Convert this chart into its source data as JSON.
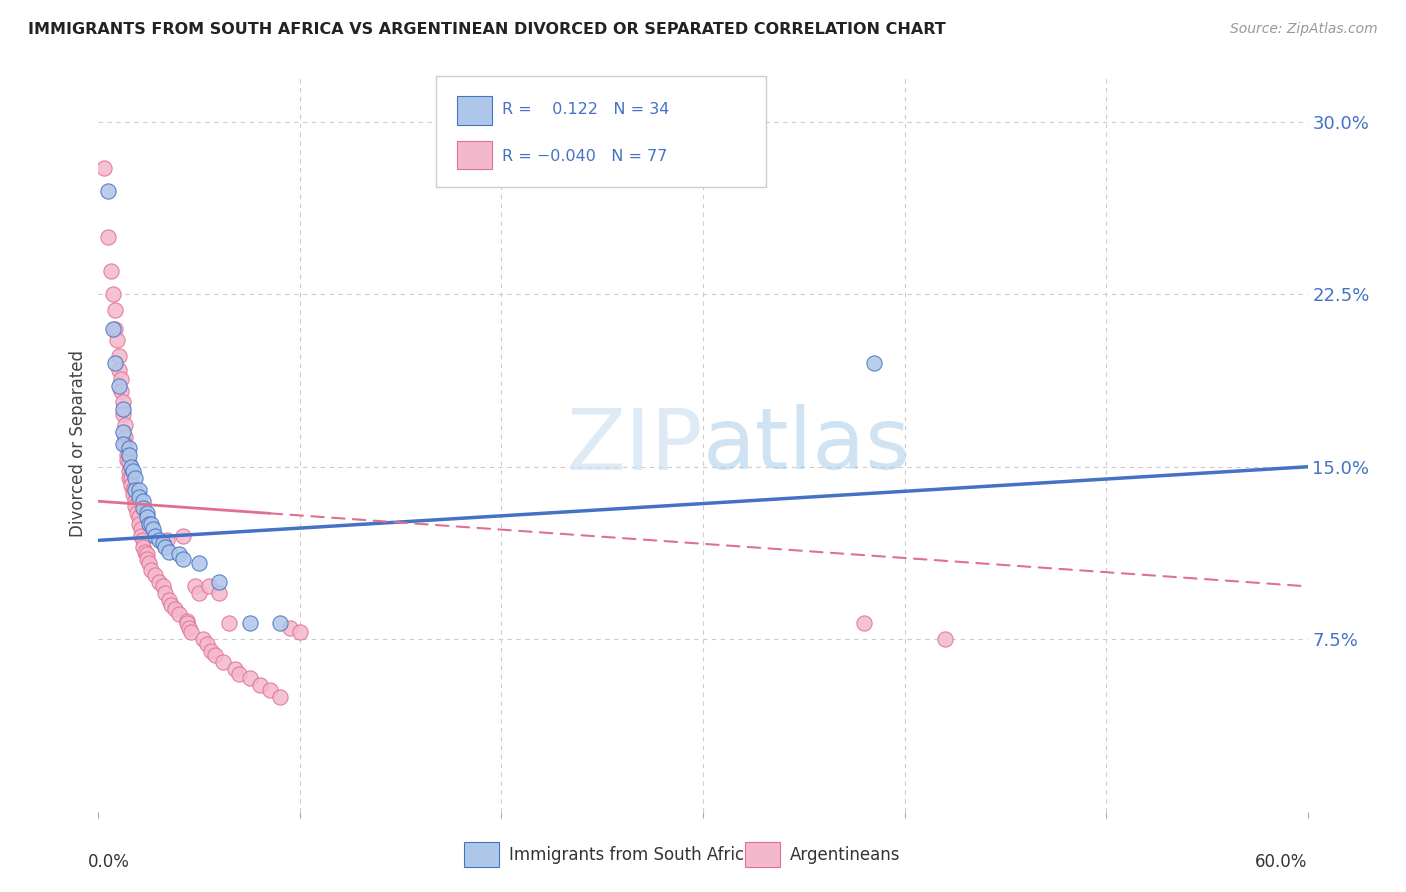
{
  "title": "IMMIGRANTS FROM SOUTH AFRICA VS ARGENTINEAN DIVORCED OR SEPARATED CORRELATION CHART",
  "source": "Source: ZipAtlas.com",
  "ylabel": "Divorced or Separated",
  "ytick_vals": [
    0.075,
    0.15,
    0.225,
    0.3
  ],
  "ytick_labels": [
    "7.5%",
    "15.0%",
    "22.5%",
    "30.0%"
  ],
  "x_min": 0.0,
  "x_max": 0.6,
  "y_min": 0.0,
  "y_max": 0.32,
  "blue_color": "#aec6e8",
  "pink_color": "#f4b8cc",
  "blue_line_color": "#4472c4",
  "pink_line_color": "#e07090",
  "blue_line_y0": 0.118,
  "blue_line_y1": 0.15,
  "pink_line_solid_x0": 0.0,
  "pink_line_solid_y0": 0.135,
  "pink_line_solid_x1": 0.085,
  "pink_line_solid_y1": 0.13,
  "pink_line_dash_x0": 0.085,
  "pink_line_dash_y0": 0.13,
  "pink_line_dash_x1": 0.6,
  "pink_line_dash_y1": 0.098,
  "blue_scatter": [
    [
      0.005,
      0.27
    ],
    [
      0.007,
      0.21
    ],
    [
      0.008,
      0.195
    ],
    [
      0.01,
      0.185
    ],
    [
      0.012,
      0.175
    ],
    [
      0.012,
      0.165
    ],
    [
      0.012,
      0.16
    ],
    [
      0.015,
      0.158
    ],
    [
      0.015,
      0.155
    ],
    [
      0.016,
      0.15
    ],
    [
      0.017,
      0.148
    ],
    [
      0.018,
      0.145
    ],
    [
      0.018,
      0.14
    ],
    [
      0.02,
      0.14
    ],
    [
      0.02,
      0.137
    ],
    [
      0.022,
      0.135
    ],
    [
      0.022,
      0.132
    ],
    [
      0.024,
      0.13
    ],
    [
      0.024,
      0.128
    ],
    [
      0.025,
      0.125
    ],
    [
      0.026,
      0.125
    ],
    [
      0.027,
      0.123
    ],
    [
      0.028,
      0.12
    ],
    [
      0.03,
      0.118
    ],
    [
      0.032,
      0.117
    ],
    [
      0.033,
      0.115
    ],
    [
      0.035,
      0.113
    ],
    [
      0.04,
      0.112
    ],
    [
      0.042,
      0.11
    ],
    [
      0.05,
      0.108
    ],
    [
      0.06,
      0.1
    ],
    [
      0.075,
      0.082
    ],
    [
      0.09,
      0.082
    ],
    [
      0.385,
      0.195
    ]
  ],
  "pink_scatter": [
    [
      0.003,
      0.28
    ],
    [
      0.005,
      0.25
    ],
    [
      0.006,
      0.235
    ],
    [
      0.007,
      0.225
    ],
    [
      0.008,
      0.218
    ],
    [
      0.008,
      0.21
    ],
    [
      0.009,
      0.205
    ],
    [
      0.01,
      0.198
    ],
    [
      0.01,
      0.192
    ],
    [
      0.011,
      0.188
    ],
    [
      0.011,
      0.183
    ],
    [
      0.012,
      0.178
    ],
    [
      0.012,
      0.173
    ],
    [
      0.013,
      0.168
    ],
    [
      0.013,
      0.163
    ],
    [
      0.013,
      0.16
    ],
    [
      0.014,
      0.155
    ],
    [
      0.014,
      0.153
    ],
    [
      0.015,
      0.152
    ],
    [
      0.015,
      0.148
    ],
    [
      0.015,
      0.145
    ],
    [
      0.016,
      0.145
    ],
    [
      0.016,
      0.142
    ],
    [
      0.017,
      0.14
    ],
    [
      0.017,
      0.138
    ],
    [
      0.018,
      0.135
    ],
    [
      0.018,
      0.133
    ],
    [
      0.019,
      0.13
    ],
    [
      0.02,
      0.128
    ],
    [
      0.02,
      0.125
    ],
    [
      0.021,
      0.123
    ],
    [
      0.021,
      0.12
    ],
    [
      0.022,
      0.118
    ],
    [
      0.022,
      0.115
    ],
    [
      0.023,
      0.113
    ],
    [
      0.024,
      0.112
    ],
    [
      0.024,
      0.11
    ],
    [
      0.025,
      0.108
    ],
    [
      0.026,
      0.105
    ],
    [
      0.028,
      0.103
    ],
    [
      0.03,
      0.1
    ],
    [
      0.032,
      0.098
    ],
    [
      0.033,
      0.095
    ],
    [
      0.034,
      0.118
    ],
    [
      0.035,
      0.092
    ],
    [
      0.036,
      0.09
    ],
    [
      0.038,
      0.088
    ],
    [
      0.04,
      0.086
    ],
    [
      0.042,
      0.12
    ],
    [
      0.044,
      0.083
    ],
    [
      0.044,
      0.082
    ],
    [
      0.045,
      0.08
    ],
    [
      0.046,
      0.078
    ],
    [
      0.048,
      0.098
    ],
    [
      0.05,
      0.095
    ],
    [
      0.052,
      0.075
    ],
    [
      0.054,
      0.073
    ],
    [
      0.055,
      0.098
    ],
    [
      0.056,
      0.07
    ],
    [
      0.058,
      0.068
    ],
    [
      0.06,
      0.095
    ],
    [
      0.062,
      0.065
    ],
    [
      0.065,
      0.082
    ],
    [
      0.068,
      0.062
    ],
    [
      0.07,
      0.06
    ],
    [
      0.075,
      0.058
    ],
    [
      0.08,
      0.055
    ],
    [
      0.085,
      0.053
    ],
    [
      0.09,
      0.05
    ],
    [
      0.095,
      0.08
    ],
    [
      0.1,
      0.078
    ],
    [
      0.38,
      0.082
    ],
    [
      0.42,
      0.075
    ]
  ]
}
